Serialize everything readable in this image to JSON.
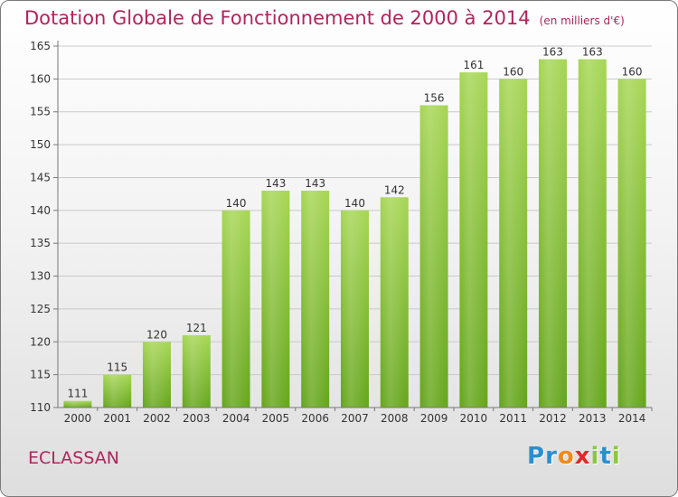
{
  "title": "Dotation Globale de Fonctionnement de 2000 à 2014",
  "unit_note": "(en milliers d'€)",
  "commune": "ECLASSAN",
  "logo": {
    "letters": [
      "P",
      "r",
      "o",
      "x",
      "i",
      "t",
      "i"
    ],
    "colors": [
      "#2a8fd0",
      "#2a8fd0",
      "#f08a18",
      "#e2282c",
      "#8dc63f",
      "#2a8fd0",
      "#8dc63f"
    ]
  },
  "chart_data": {
    "type": "bar",
    "categories": [
      "2000",
      "2001",
      "2002",
      "2003",
      "2004",
      "2005",
      "2006",
      "2007",
      "2008",
      "2009",
      "2010",
      "2011",
      "2012",
      "2013",
      "2014"
    ],
    "values": [
      111,
      115,
      120,
      121,
      140,
      143,
      143,
      140,
      142,
      156,
      161,
      160,
      163,
      163,
      160
    ],
    "ylim": [
      110,
      165
    ],
    "yticks": [
      110,
      115,
      120,
      125,
      130,
      135,
      140,
      145,
      150,
      155,
      160,
      165
    ],
    "grid": true,
    "bar_color": "#8cc63f"
  }
}
